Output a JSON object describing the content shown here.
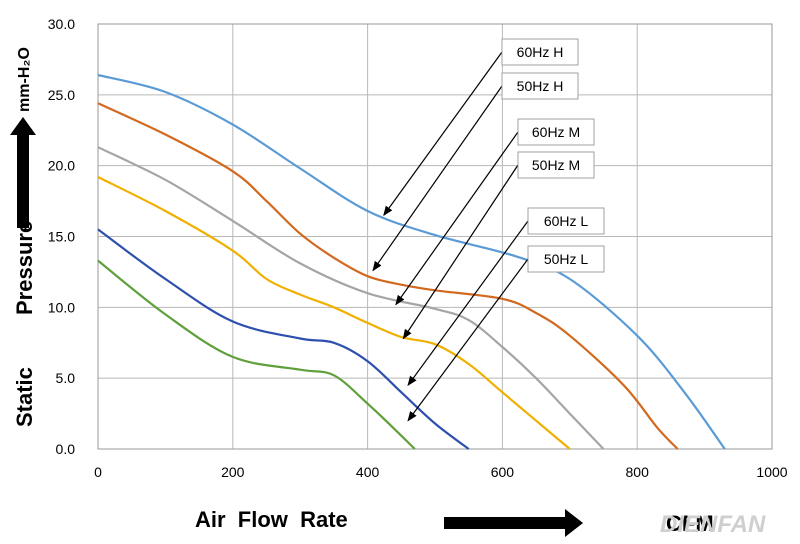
{
  "chart_data": {
    "type": "line",
    "xlabel": "Air  Flow  Rate",
    "xunit": "CFM",
    "ylabel_parts": [
      "Static",
      "Pressure"
    ],
    "yunit": "mm-H₂O",
    "xlim": [
      0,
      1000
    ],
    "ylim": [
      0,
      30
    ],
    "xticks": [
      "0",
      "200",
      "400",
      "600",
      "800",
      "1000"
    ],
    "yticks": [
      "0.0",
      "5.0",
      "10.0",
      "15.0",
      "20.0",
      "25.0",
      "30.0"
    ],
    "grid": true,
    "watermark": "DIENFAN",
    "series": [
      {
        "name": "60Hz H",
        "color": "#5b9bd5",
        "x": [
          0,
          100,
          200,
          300,
          400,
          500,
          620,
          700,
          800,
          870,
          930
        ],
        "y": [
          26.4,
          25.2,
          22.9,
          19.8,
          16.8,
          15.1,
          13.6,
          12.0,
          8.0,
          4.0,
          0.0
        ]
      },
      {
        "name": "50Hz H",
        "color": "#d2691e",
        "x": [
          0,
          100,
          200,
          250,
          300,
          350,
          400,
          450,
          500,
          600,
          650,
          700,
          780,
          830,
          860
        ],
        "y": [
          24.4,
          22.2,
          19.6,
          17.5,
          15.2,
          13.5,
          12.2,
          11.6,
          11.2,
          10.6,
          9.6,
          8.0,
          4.5,
          1.5,
          0.0
        ]
      },
      {
        "name": "60Hz M",
        "color": "#a5a5a5",
        "x": [
          0,
          100,
          200,
          300,
          400,
          500,
          550,
          600,
          650,
          700,
          750
        ],
        "y": [
          21.3,
          19.0,
          16.1,
          13.1,
          11.0,
          9.9,
          9.1,
          7.2,
          5.0,
          2.5,
          0.0
        ]
      },
      {
        "name": "50Hz M",
        "color": "#f0b000",
        "x": [
          0,
          100,
          200,
          250,
          300,
          350,
          400,
          450,
          500,
          550,
          600,
          650,
          700
        ],
        "y": [
          19.2,
          16.8,
          14.0,
          12.0,
          10.9,
          10.0,
          8.9,
          7.9,
          7.4,
          6.0,
          4.0,
          2.0,
          0.0
        ]
      },
      {
        "name": "60Hz L",
        "color": "#2e4fae",
        "x": [
          0,
          100,
          200,
          300,
          350,
          400,
          450,
          500,
          550
        ],
        "y": [
          15.5,
          12.0,
          9.0,
          7.8,
          7.5,
          6.2,
          4.0,
          1.8,
          0.0
        ]
      },
      {
        "name": "50Hz L",
        "color": "#5fa03c",
        "x": [
          0,
          100,
          200,
          300,
          350,
          400,
          440,
          470
        ],
        "y": [
          13.3,
          9.5,
          6.5,
          5.6,
          5.2,
          3.2,
          1.4,
          0.0
        ]
      }
    ],
    "callouts": [
      {
        "label": "60Hz H",
        "target": [
          424,
          16.5
        ]
      },
      {
        "label": "50Hz H",
        "target": [
          408,
          12.6
        ]
      },
      {
        "label": "60Hz M",
        "target": [
          442,
          10.2
        ]
      },
      {
        "label": "50Hz M",
        "target": [
          453,
          7.8
        ]
      },
      {
        "label": "60Hz L",
        "target": [
          460,
          4.5
        ]
      },
      {
        "label": "50Hz L",
        "target": [
          460,
          2.0
        ]
      }
    ]
  }
}
